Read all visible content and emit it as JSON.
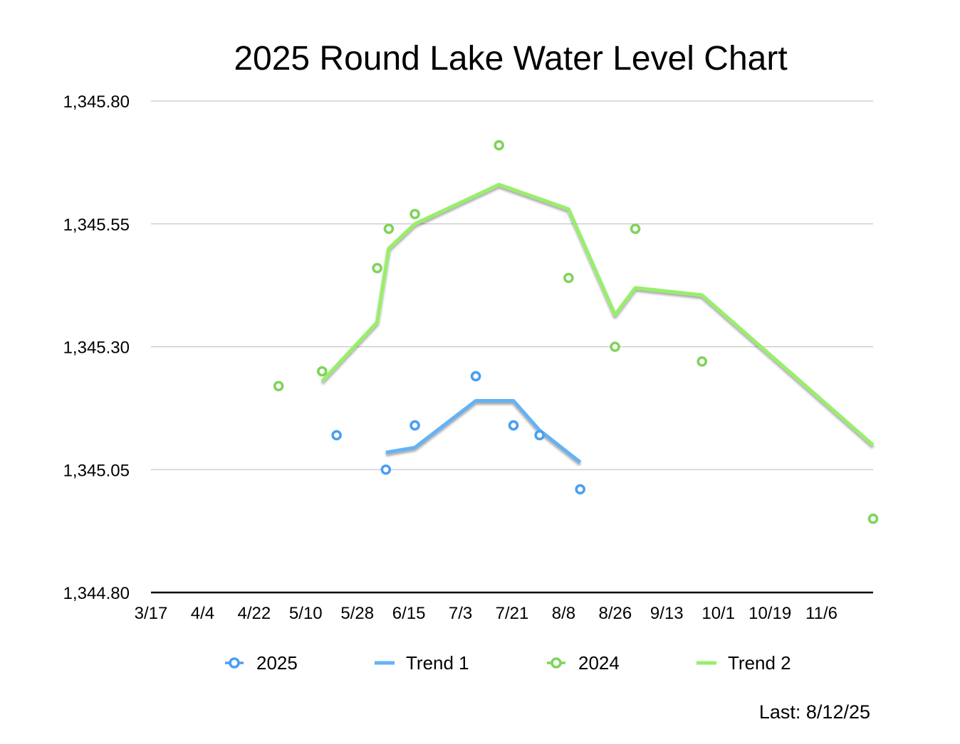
{
  "chart_data": {
    "type": "scatter",
    "title": "2025 Round Lake Water Level Chart",
    "xlabel": "",
    "ylabel": "",
    "x_tick_labels": [
      "3/17",
      "4/4",
      "4/22",
      "5/10",
      "5/28",
      "6/15",
      "7/3",
      "7/21",
      "8/8",
      "8/26",
      "9/13",
      "10/1",
      "10/19",
      "11/6"
    ],
    "y_tick_labels": [
      "1,345.80",
      "1,345.55",
      "1,345.30",
      "1,345.05",
      "1,344.80"
    ],
    "xlim": [
      "2025-03-17",
      "2025-11-21"
    ],
    "ylim": [
      1344.8,
      1345.8
    ],
    "grid": true,
    "legend_position": "bottom",
    "series": [
      {
        "name": "2025",
        "kind": "scatter",
        "color": "#4a9ff0",
        "points": [
          {
            "x": "2025-05-20",
            "y": 1345.12
          },
          {
            "x": "2025-06-06",
            "y": 1345.05
          },
          {
            "x": "2025-06-16",
            "y": 1345.14
          },
          {
            "x": "2025-07-07",
            "y": 1345.24
          },
          {
            "x": "2025-07-20",
            "y": 1345.14
          },
          {
            "x": "2025-07-29",
            "y": 1345.12
          },
          {
            "x": "2025-08-12",
            "y": 1345.01
          }
        ]
      },
      {
        "name": "Trend 1",
        "kind": "line",
        "color": "#63b2f5",
        "points": [
          {
            "x": "2025-06-06",
            "y": 1345.085
          },
          {
            "x": "2025-06-16",
            "y": 1345.095
          },
          {
            "x": "2025-07-07",
            "y": 1345.19
          },
          {
            "x": "2025-07-20",
            "y": 1345.19
          },
          {
            "x": "2025-07-29",
            "y": 1345.13
          },
          {
            "x": "2025-08-12",
            "y": 1345.065
          }
        ]
      },
      {
        "name": "2024",
        "kind": "scatter",
        "color": "#7fd45a",
        "points": [
          {
            "x": "2025-04-30",
            "y": 1345.22
          },
          {
            "x": "2025-05-15",
            "y": 1345.25
          },
          {
            "x": "2025-06-03",
            "y": 1345.46
          },
          {
            "x": "2025-06-07",
            "y": 1345.54
          },
          {
            "x": "2025-06-16",
            "y": 1345.57
          },
          {
            "x": "2025-07-15",
            "y": 1345.71
          },
          {
            "x": "2025-08-08",
            "y": 1345.44
          },
          {
            "x": "2025-08-24",
            "y": 1345.3
          },
          {
            "x": "2025-08-31",
            "y": 1345.54
          },
          {
            "x": "2025-09-23",
            "y": 1345.27
          },
          {
            "x": "2025-11-21",
            "y": 1344.95
          }
        ]
      },
      {
        "name": "Trend 2",
        "kind": "line",
        "color": "#97ef6b",
        "points": [
          {
            "x": "2025-05-15",
            "y": 1345.23
          },
          {
            "x": "2025-06-03",
            "y": 1345.35
          },
          {
            "x": "2025-06-07",
            "y": 1345.5
          },
          {
            "x": "2025-06-16",
            "y": 1345.55
          },
          {
            "x": "2025-07-15",
            "y": 1345.63
          },
          {
            "x": "2025-08-08",
            "y": 1345.58
          },
          {
            "x": "2025-08-24",
            "y": 1345.365
          },
          {
            "x": "2025-08-31",
            "y": 1345.42
          },
          {
            "x": "2025-09-23",
            "y": 1345.405
          },
          {
            "x": "2025-11-21",
            "y": 1345.1
          }
        ]
      }
    ]
  },
  "footnote": "Last:  8/12/25"
}
